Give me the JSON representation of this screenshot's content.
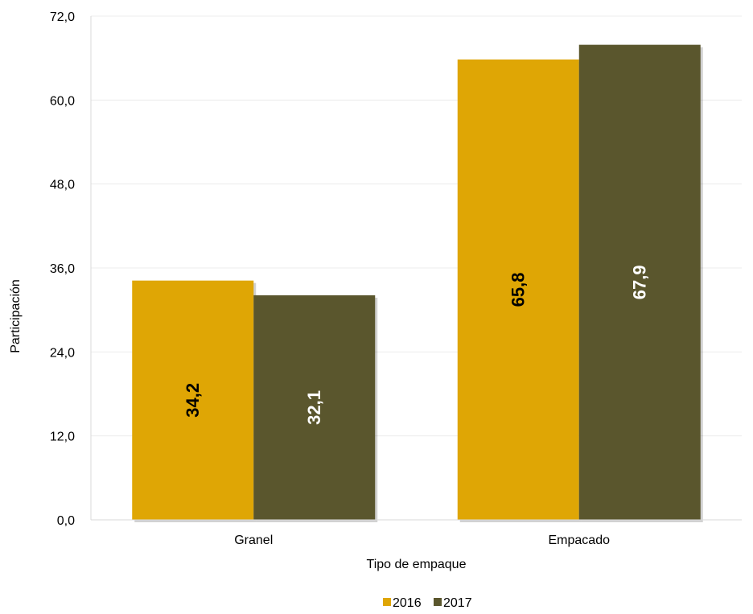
{
  "chart_data": {
    "type": "bar",
    "title": "",
    "xlabel": "Tipo de empaque",
    "ylabel": "Participación",
    "categories": [
      "Granel",
      "Empacado"
    ],
    "series": [
      {
        "name": "2016",
        "values": [
          34.2,
          65.8
        ],
        "labels": [
          "34,2",
          "65,8"
        ],
        "color": "#DFA605",
        "label_color": "#000000"
      },
      {
        "name": "2017",
        "values": [
          32.1,
          67.9
        ],
        "labels": [
          "32,1",
          "67,9"
        ],
        "color": "#5A562D",
        "label_color": "#ffffff"
      }
    ],
    "ylim": [
      0,
      72
    ],
    "yticks": [
      0,
      12,
      24,
      36,
      48,
      60,
      72
    ],
    "ytick_labels": [
      "0,0",
      "12,0",
      "24,0",
      "36,0",
      "48,0",
      "60,0",
      "72,0"
    ],
    "grid": true,
    "legend_position": "bottom",
    "data_label_orientation": "vertical"
  }
}
